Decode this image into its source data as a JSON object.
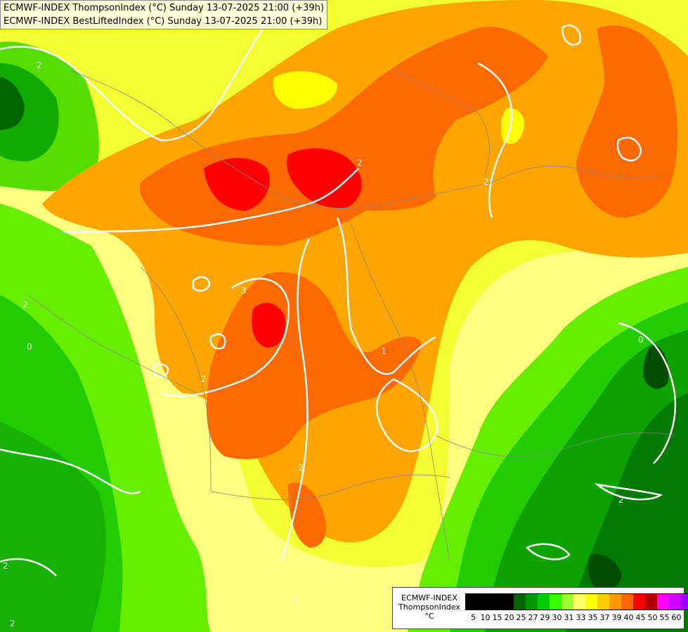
{
  "header": {
    "line1": "ECMWF-INDEX ThompsonIndex (°C) Sunday 13-07-2025 21:00 (+39h)",
    "line2": "ECMWF-INDEX BestLiftedIndex (°C) Sunday 13-07-2025 21:00 (+39h)"
  },
  "legend": {
    "line1": "ECMWF-INDEX",
    "line2": "ThompsonIndex",
    "unit": "°C",
    "colors": [
      "#000000",
      "#000000",
      "#000000",
      "#000000",
      "#006600",
      "#009900",
      "#00cc00",
      "#33ff00",
      "#99ff33",
      "#ffff66",
      "#ffff00",
      "#ffcc00",
      "#ff9900",
      "#ff6600",
      "#ff0000",
      "#b30000",
      "#ff00ff",
      "#cc00ff",
      "#9900ff",
      "#6600ff",
      "#0000ff"
    ],
    "ticks": [
      "5",
      "10",
      "15",
      "20",
      "25",
      "27",
      "29",
      "30",
      "31",
      "33",
      "35",
      "37",
      "39",
      "40",
      "45",
      "50",
      "55",
      "60"
    ]
  },
  "map": {
    "contour_labels": [
      "2",
      "2",
      "2",
      "3",
      "2",
      "1",
      "2",
      "2",
      "0",
      "0",
      "2",
      "2",
      "2",
      "2"
    ]
  }
}
